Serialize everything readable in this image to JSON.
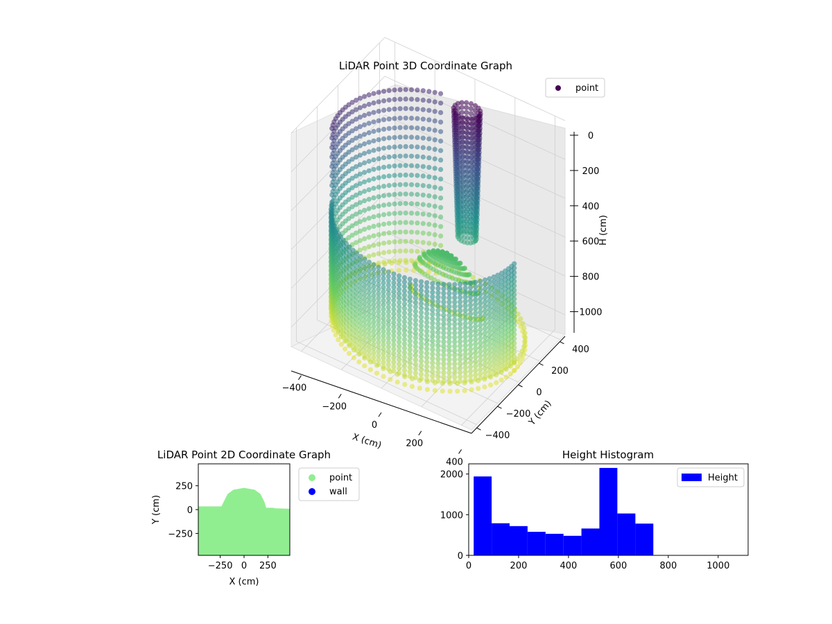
{
  "chart_data": [
    {
      "type": "scatter3d",
      "title": "LiDAR Point 3D Coordinate Graph",
      "xlabel": "X (cm)",
      "ylabel": "Y (cm)",
      "zlabel": "H (cm)",
      "xticks": [
        "−400",
        "−200",
        "0",
        "200",
        "400"
      ],
      "yticks": [
        "−400",
        "−200",
        "0",
        "200",
        "400"
      ],
      "zticks": [
        "0",
        "200",
        "400",
        "600",
        "800",
        "1000"
      ],
      "xlim": [
        -450,
        450
      ],
      "ylim": [
        -450,
        450
      ],
      "zlim": [
        0,
        1100
      ],
      "z_inverted": true,
      "colormap": "viridis",
      "legend": {
        "position": "top-right",
        "entries": [
          "point"
        ]
      },
      "grid": true,
      "structures": [
        {
          "shape": "half-ring wall",
          "center": [
            0,
            0
          ],
          "radius": 430,
          "arc_deg": [
            200,
            360
          ],
          "h_range": [
            0,
            1000
          ]
        },
        {
          "shape": "arched wall",
          "center": [
            0,
            0
          ],
          "radius": 430,
          "arc_deg": [
            110,
            200
          ],
          "h_range": [
            0,
            1000
          ]
        },
        {
          "shape": "vertical column",
          "center": [
            80,
            220
          ],
          "radius": 60,
          "h_range": [
            0,
            650
          ]
        },
        {
          "shape": "dome mound",
          "center": [
            0,
            180
          ],
          "radius": 180,
          "h_range": [
            750,
            1000
          ]
        },
        {
          "shape": "floor ring",
          "center": [
            0,
            0
          ],
          "radius": 430,
          "h": 1050
        }
      ]
    },
    {
      "type": "scatter",
      "title": "LiDAR Point 2D Coordinate Graph",
      "xlabel": "X (cm)",
      "ylabel": "Y (cm)",
      "xticks": [
        "−250",
        "0",
        "250"
      ],
      "yticks": [
        "250",
        "0",
        "−250"
      ],
      "xlim": [
        -480,
        480
      ],
      "ylim": [
        -480,
        480
      ],
      "legend": {
        "position": "outside-right",
        "entries": [
          {
            "name": "point",
            "color": "#90ee90"
          },
          {
            "name": "wall",
            "color": "#0000ff"
          }
        ]
      },
      "outline": [
        [
          -480,
          30
        ],
        [
          -235,
          30
        ],
        [
          -210,
          80
        ],
        [
          -170,
          160
        ],
        [
          -110,
          205
        ],
        [
          0,
          225
        ],
        [
          110,
          205
        ],
        [
          170,
          160
        ],
        [
          210,
          80
        ],
        [
          230,
          15
        ],
        [
          300,
          15
        ],
        [
          330,
          10
        ],
        [
          480,
          5
        ],
        [
          480,
          -480
        ],
        [
          -480,
          -480
        ]
      ]
    },
    {
      "type": "bar",
      "title": "Height Histogram",
      "xlabel": "",
      "ylabel": "",
      "xticks": [
        "0",
        "200",
        "400",
        "600",
        "800",
        "1000"
      ],
      "yticks": [
        "0",
        "1000",
        "2000"
      ],
      "xlim": [
        0,
        1120
      ],
      "ylim": [
        0,
        2250
      ],
      "bar_color": "#0000ff",
      "legend": {
        "position": "top-right",
        "entries": [
          "Height"
        ]
      },
      "bins": [
        [
          20,
          92
        ],
        [
          92,
          164
        ],
        [
          164,
          236
        ],
        [
          236,
          308
        ],
        [
          308,
          380
        ],
        [
          380,
          452
        ],
        [
          452,
          524
        ],
        [
          524,
          596
        ],
        [
          596,
          668
        ],
        [
          668,
          740
        ]
      ],
      "values": [
        1940,
        790,
        720,
        580,
        530,
        480,
        660,
        2150,
        1030,
        780
      ]
    }
  ]
}
